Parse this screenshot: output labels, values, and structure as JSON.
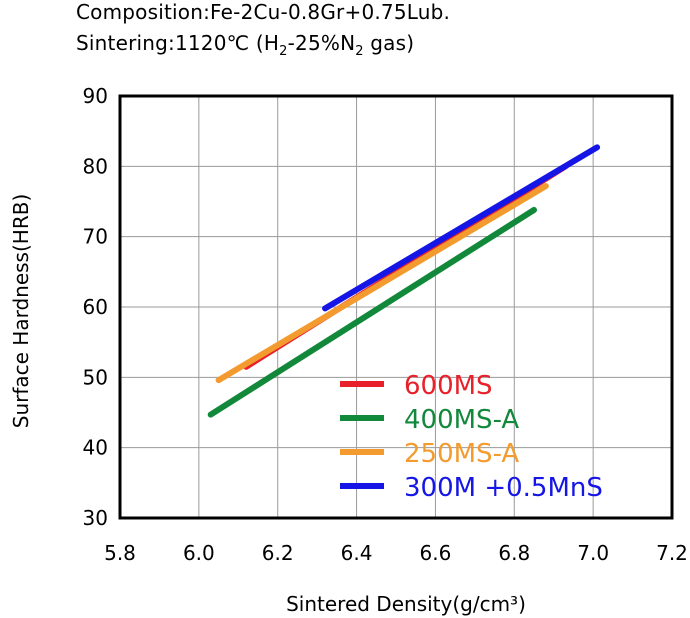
{
  "caption": {
    "composition": "Composition:Fe-2Cu-0.8Gr+0.75Lub.",
    "sintering_prefix": "Sintering:1120℃ (H",
    "sintering_sub1": "2",
    "sintering_mid": "-25%N",
    "sintering_sub2": "2",
    "sintering_suffix": " gas)"
  },
  "chart_data": {
    "type": "line",
    "title": "",
    "xlabel": "Sintered Density(g/cm³)",
    "ylabel": "Surface Hardness(HRB)",
    "xlim": [
      5.8,
      7.2
    ],
    "ylim": [
      30,
      90
    ],
    "xticks": [
      5.8,
      6.0,
      6.2,
      6.4,
      6.6,
      6.8,
      7.0,
      7.2
    ],
    "yticks": [
      30,
      40,
      50,
      60,
      70,
      80,
      90
    ],
    "x_tick_labels": [
      "5.8",
      "6.0",
      "6.2",
      "6.4",
      "6.6",
      "6.8",
      "7.0",
      "7.2"
    ],
    "y_tick_labels": [
      "30",
      "40",
      "50",
      "60",
      "70",
      "80",
      "90"
    ],
    "grid": true,
    "legend_position": "bottom-right",
    "series": [
      {
        "name": "600MS",
        "color": "#e8202a",
        "x": [
          6.12,
          6.93
        ],
        "values": [
          51.5,
          80.0
        ]
      },
      {
        "name": "400MS-A",
        "color": "#12883a",
        "x": [
          6.03,
          6.85
        ],
        "values": [
          44.7,
          73.8
        ]
      },
      {
        "name": "250MS-A",
        "color": "#f39b2e",
        "x": [
          6.05,
          6.88
        ],
        "values": [
          49.6,
          77.2
        ]
      },
      {
        "name": "300M  +0.5MnS",
        "color": "#1515e6",
        "x": [
          6.32,
          7.01
        ],
        "values": [
          59.8,
          82.7
        ]
      }
    ]
  }
}
